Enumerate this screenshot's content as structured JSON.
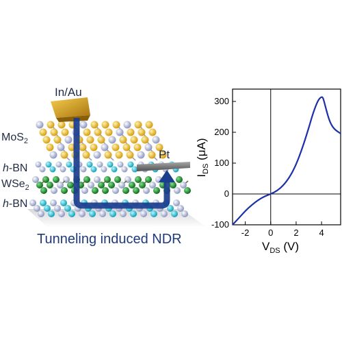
{
  "illustration": {
    "labels": {
      "top_contact": "In/Au",
      "right_contact": "Pt",
      "layer1": "MoS",
      "layer1_sub": "2",
      "layer2_italic": "h",
      "layer2_rest": "-BN",
      "layer3": "WSe",
      "layer3_sub": "2",
      "layer4_italic": "h",
      "layer4_rest": "-BN"
    },
    "caption": "Tunneling induced NDR",
    "colors": {
      "mos2_atoms": "#f0c030",
      "hbn_atoms": "#9aa6c8",
      "wse2_atoms": "#1e8a2a",
      "cyan_atoms": "#20c0d0",
      "contact_gold": "#d8a020",
      "contact_pt": "#707070",
      "arrow": "#1a3d8c"
    }
  },
  "chart_data": {
    "type": "line",
    "xlabel_main": "V",
    "xlabel_sub": "DS",
    "xlabel_unit": " (V)",
    "ylabel_main": "I",
    "ylabel_sub": "DS",
    "ylabel_unit": " (μA)",
    "xlim": [
      -3,
      5.5
    ],
    "ylim": [
      -100,
      340
    ],
    "x_ticks": [
      -2,
      0,
      2,
      4
    ],
    "y_ticks": [
      -100,
      0,
      100,
      200,
      300
    ],
    "zero_lines": true,
    "line_color": "#1a2fa8",
    "series": [
      {
        "x": [
          -3.0,
          -2.5,
          -2.0,
          -1.5,
          -1.0,
          -0.5,
          0.0,
          0.5,
          1.0,
          1.5,
          2.0,
          2.5,
          3.0,
          3.3,
          3.6,
          3.8,
          4.0,
          4.1,
          4.2,
          4.4,
          4.6,
          4.8,
          5.0,
          5.2,
          5.5
        ],
        "y": [
          -100,
          -78,
          -55,
          -36,
          -20,
          -8,
          0,
          10,
          28,
          55,
          95,
          150,
          215,
          258,
          292,
          308,
          315,
          313,
          300,
          268,
          240,
          222,
          211,
          204,
          196
        ]
      }
    ]
  }
}
